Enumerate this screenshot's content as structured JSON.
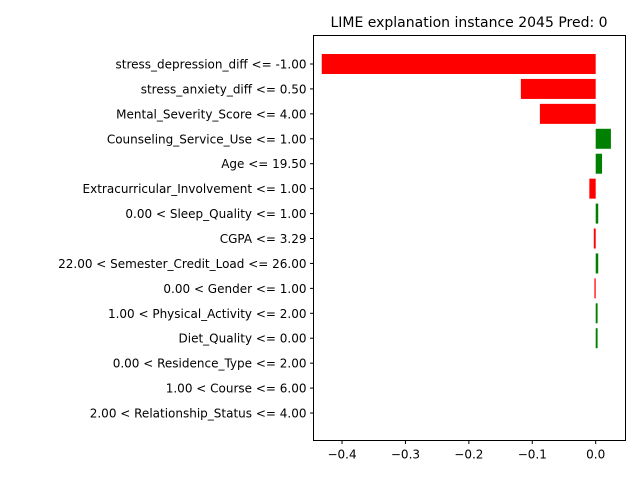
{
  "chart_data": {
    "type": "bar",
    "orientation": "horizontal",
    "title": "LIME explanation instance 2045 Pred: 0",
    "xlabel": "",
    "ylabel": "",
    "xlim": [
      -0.445,
      0.047
    ],
    "xticks": [
      -0.4,
      -0.3,
      -0.2,
      -0.1,
      0.0
    ],
    "xtick_labels": [
      "−0.4",
      "−0.3",
      "−0.2",
      "−0.1",
      "0.0"
    ],
    "grid": false,
    "positive_color": "#008000",
    "negative_color": "#ff0000",
    "categories": [
      "stress_depression_diff <= -1.00",
      "stress_anxiety_diff <= 0.50",
      "Mental_Severity_Score <= 4.00",
      "Counseling_Service_Use <= 1.00",
      "Age <= 19.50",
      "Extracurricular_Involvement <= 1.00",
      "0.00 < Sleep_Quality <= 1.00",
      "CGPA <= 3.29",
      "22.00 < Semester_Credit_Load <= 26.00",
      "0.00 < Gender <= 1.00",
      "1.00 < Physical_Activity <= 2.00",
      "Diet_Quality <= 0.00",
      "0.00 < Residence_Type <= 2.00",
      "1.00 < Course <= 6.00",
      "2.00 < Relationship_Status <= 4.00"
    ],
    "values": [
      -0.432,
      -0.118,
      -0.088,
      0.024,
      0.01,
      -0.01,
      0.004,
      -0.003,
      0.004,
      -0.002,
      0.003,
      0.003,
      0.0,
      0.0,
      0.0
    ]
  }
}
